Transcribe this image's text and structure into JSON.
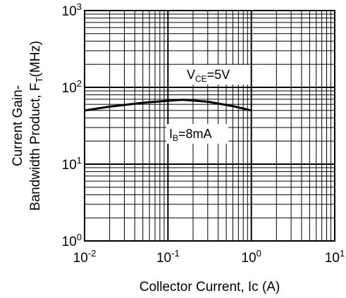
{
  "chart_data": {
    "type": "line",
    "xlabel": "Collector Current, Ic (A)",
    "ylabel": {
      "line1": "Current Gain-",
      "line2_prefix": "Bandwidth Product, F",
      "line2_sub": "T",
      "line2_suffix": "(MHz)"
    },
    "x_scale": "log",
    "y_scale": "log",
    "xlim": [
      0.01,
      10
    ],
    "ylim": [
      1,
      1000
    ],
    "grid": true,
    "x_ticks": [
      {
        "value": 0.01,
        "base": "10",
        "exp": "-2"
      },
      {
        "value": 0.1,
        "base": "10",
        "exp": "-1"
      },
      {
        "value": 1,
        "base": "10",
        "exp": "0"
      },
      {
        "value": 10,
        "base": "10",
        "exp": "1"
      }
    ],
    "y_ticks": [
      {
        "value": 1,
        "base": "10",
        "exp": "0"
      },
      {
        "value": 10,
        "base": "10",
        "exp": "1"
      },
      {
        "value": 100,
        "base": "10",
        "exp": "2"
      },
      {
        "value": 1000,
        "base": "10",
        "exp": "3"
      }
    ],
    "series": [
      {
        "x": [
          0.01,
          0.02,
          0.05,
          0.1,
          0.15,
          0.3,
          0.6,
          1.0
        ],
        "y": [
          50,
          56,
          63,
          67,
          69,
          65,
          57,
          50
        ]
      }
    ],
    "annotations": {
      "vce": {
        "main": "V",
        "sub": "CE",
        "rest": "=5V"
      },
      "ib": {
        "main": "I",
        "sub": "B",
        "rest": "=8mA"
      }
    }
  }
}
